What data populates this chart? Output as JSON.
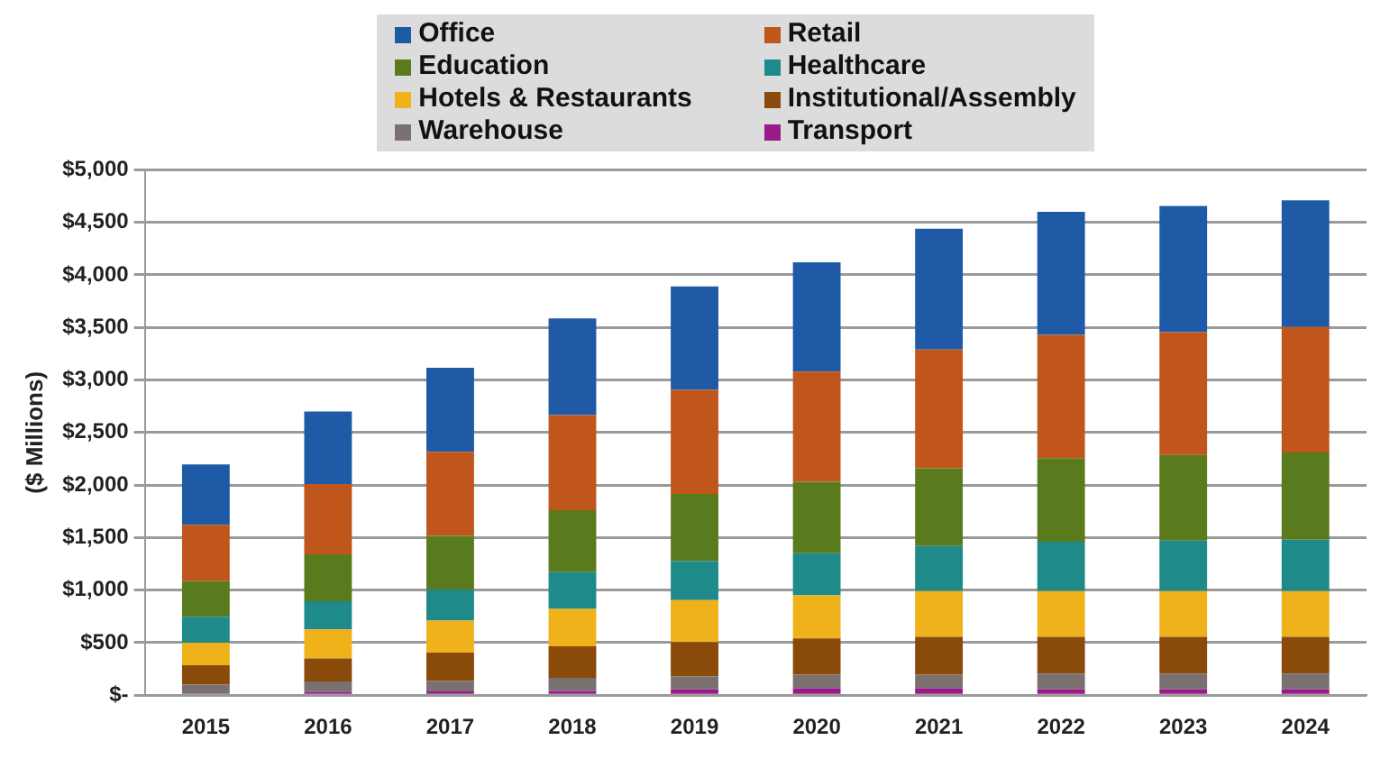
{
  "chart_data": {
    "type": "bar",
    "stacked": true,
    "ylabel": "($ Millions)",
    "categories": [
      "2015",
      "2016",
      "2017",
      "2018",
      "2019",
      "2020",
      "2021",
      "2022",
      "2023",
      "2024"
    ],
    "series": [
      {
        "name": "Transport",
        "color": "#9a1a8a",
        "values": [
          null,
          30,
          35,
          40,
          55,
          65,
          65,
          55,
          55,
          55
        ]
      },
      {
        "name": "Warehouse",
        "color": "#7a7070",
        "values": [
          100,
          100,
          100,
          125,
          125,
          130,
          130,
          150,
          150,
          150
        ]
      },
      {
        "name": "Institutional/Assembly",
        "color": "#8a4a0a",
        "values": [
          185,
          220,
          270,
          300,
          325,
          345,
          360,
          350,
          350,
          350
        ]
      },
      {
        "name": "Hotels & Restaurants",
        "color": "#f0b21a",
        "values": [
          215,
          275,
          305,
          355,
          400,
          410,
          435,
          435,
          435,
          435
        ]
      },
      {
        "name": "Healthcare",
        "color": "#1f8a8a",
        "values": [
          245,
          270,
          295,
          350,
          370,
          400,
          430,
          470,
          480,
          490
        ]
      },
      {
        "name": "Education",
        "color": "#5a7a1e",
        "values": [
          340,
          445,
          510,
          590,
          640,
          680,
          740,
          795,
          815,
          830
        ]
      },
      {
        "name": "Retail",
        "color": "#c0561c",
        "values": [
          535,
          670,
          800,
          905,
          990,
          1050,
          1130,
          1175,
          1170,
          1195
        ]
      },
      {
        "name": "Office",
        "color": "#1f5aa6",
        "values": [
          575,
          690,
          800,
          920,
          985,
          1040,
          1150,
          1170,
          1200,
          1205
        ]
      }
    ],
    "ylim": [
      0,
      5000
    ],
    "yticks": [
      {
        "value": 0,
        "label": "$-"
      },
      {
        "value": 500,
        "label": "$500"
      },
      {
        "value": 1000,
        "label": "$1,000"
      },
      {
        "value": 1500,
        "label": "$1,500"
      },
      {
        "value": 2000,
        "label": "$2,000"
      },
      {
        "value": 2500,
        "label": "$2,500"
      },
      {
        "value": 3000,
        "label": "$3,000"
      },
      {
        "value": 3500,
        "label": "$3,500"
      },
      {
        "value": 4000,
        "label": "$4,000"
      },
      {
        "value": 4500,
        "label": "$4,500"
      },
      {
        "value": 5000,
        "label": "$5,000"
      }
    ],
    "grid": "y",
    "legend": "top"
  }
}
